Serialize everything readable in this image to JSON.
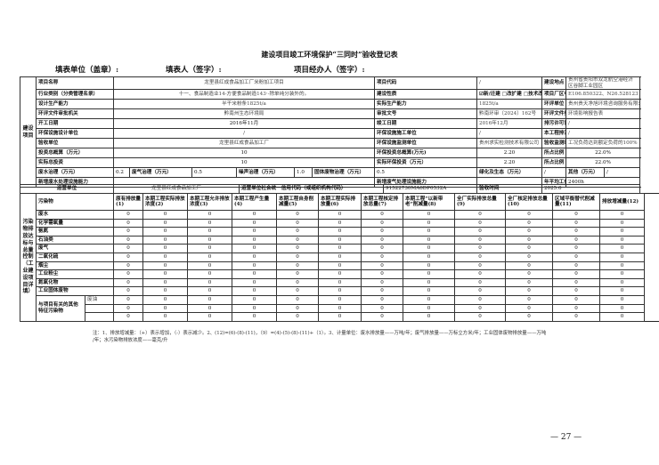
{
  "title": "建设项目竣工环境保护“三同时”验收登记表",
  "fill": {
    "unit": "填表单位（盖章）:",
    "person": "填表人（签字）:",
    "manager": "项目经办人（签字）:"
  },
  "project": {
    "section_label": "建设项目",
    "name_label": "项目名称",
    "name": "龙里县红成食品加工厂米粉加工项目",
    "code_label": "项目代码",
    "code": "/",
    "location_label": "建设地点",
    "location": "贵州省贵阳市双龙航空港经济区谷脚工业园区",
    "industry_label": "行业类别（分类管理名录）",
    "industry": "十一、食品制造业14-方便食品制造143·-除单纯分装外的。",
    "nature_label": "建设性质",
    "nature": "☑新/迁建 □改扩建 □技术改造",
    "coords_label": "项目厂区中心经度/纬度",
    "coords": "E106.850322、N26.528123",
    "design_capacity_label": "设计生产能力",
    "design_capacity": "半干米粉条1825t/a",
    "actual_capacity_label": "实际生产能力",
    "actual_capacity": "1825t/a",
    "eia_unit_label": "环评单位",
    "eia_unit": "贵州贵天净旭环境咨询服务有限公司",
    "approval_org_label": "环评文件审批机关",
    "approval_org": "黔南州生态环境局",
    "approval_no_label": "审批文号",
    "approval_no": "黔南环审〔2024〕162号",
    "eia_type_label": "环评文件类型",
    "eia_type": "环境影响报告表",
    "start_label": "开工日期",
    "start": "2016年11月",
    "finish_label": "竣工日期",
    "finish": "2016年12月",
    "permit_time_label": "排污许可证申领时间",
    "permit_time": "/",
    "design_unit_label": "环保设施设计单位",
    "design_unit": "/",
    "construct_unit_label": "环保设施施工单位",
    "construct_unit": "/",
    "permit_no_label": "本工程排污许可证编号",
    "permit_no": "/",
    "acceptance_unit_label": "验收单位",
    "acceptance_unit": "龙里县红成食品加工厂",
    "monitor_unit_label": "环保设施监测单位",
    "monitor_unit": "贵州求实检测技术有限公司",
    "condition_label": "验收监测时工况",
    "condition": "工况负荷达到额定负荷的100%",
    "budget_label": "投资总概算（万元）",
    "budget": "10",
    "env_budget_label": "环保投资总概算(万元)",
    "env_budget": "2.20",
    "ratio1_label": "所占比例（%）",
    "ratio1": "22.0%",
    "actual_invest_label": "实际总投资",
    "actual_invest": "10",
    "actual_env_label": "实际环保投资（万元）",
    "actual_env": "2.20",
    "ratio2_label": "所占比例（%）",
    "ratio2": "22.0%",
    "water_label": "废水治理（万元）",
    "water": "0.2",
    "gas_label": "废气治理（万元）",
    "gas": "0.5",
    "noise_label": "噪声治理（万元）",
    "noise": "1.0",
    "solid_label": "固体废物治理（万元）",
    "solid": "0.5",
    "green_label": "绿化及生态（万元）",
    "green": "/",
    "other_label": "其他（万元）",
    "other": "/",
    "new_water_label": "新增废水处理设施能力",
    "new_water": "",
    "new_gas_label": "新增废气处理设施能力",
    "new_gas": "",
    "hours_label": "年平均工作时",
    "hours": "2400h"
  },
  "operator": {
    "label": "运营单位",
    "value": "龙里县红成食品加工厂",
    "credit_label": "运营单位社会统一信用代码（或组织机构代码）",
    "credit": "91522730MA6DP0532A",
    "time_label": "验收时间",
    "time": "2025.6"
  },
  "pollutants": {
    "section_label": "污染物排放达标与总量控制（工业建设项目详填）",
    "header_label": "污染物",
    "columns": [
      "原有排放量(1)",
      "本期工程实际排放浓度(2)",
      "本期工程允许排放浓度(3)",
      "本期工程产生量(4)",
      "本期工程自身削减量(5)",
      "本期工程实际排放量(6)",
      "本期工程核定排放总量(7)",
      "本期工程“以新带老”削减量(8)",
      "全厂实际排放总量(9)",
      "全厂核定排放总量(10)",
      "区域平衡替代削减量(11)",
      "排放增减量(12)"
    ],
    "rows": [
      {
        "name": "废水",
        "values": [
          "0",
          "0",
          "0",
          "0",
          "0",
          "0",
          "0",
          "0",
          "0",
          "0",
          "0",
          "0"
        ]
      },
      {
        "name": "化学需氧量",
        "values": [
          "0",
          "0",
          "0",
          "0",
          "0",
          "0",
          "0",
          "0",
          "0",
          "0",
          "0",
          "0"
        ]
      },
      {
        "name": "氨氮",
        "values": [
          "0",
          "0",
          "0",
          "0",
          "0",
          "0",
          "0",
          "0",
          "0",
          "0",
          "0",
          "0"
        ]
      },
      {
        "name": "石油类",
        "values": [
          "0",
          "0",
          "0",
          "0",
          "0",
          "0",
          "0",
          "0",
          "0",
          "0",
          "0",
          "0"
        ]
      },
      {
        "name": "废气",
        "values": [
          "0",
          "0",
          "0",
          "0",
          "0",
          "0",
          "0",
          "0",
          "0",
          "0",
          "0",
          "0"
        ]
      },
      {
        "name": "二氧化硫",
        "values": [
          "0",
          "0",
          "0",
          "0",
          "0",
          "0",
          "0",
          "0",
          "0",
          "0",
          "0",
          "0"
        ]
      },
      {
        "name": "烟尘",
        "values": [
          "0",
          "0",
          "0",
          "0",
          "0",
          "0",
          "0",
          "0",
          "0",
          "0",
          "0",
          "0"
        ]
      },
      {
        "name": "工业粉尘",
        "values": [
          "0",
          "0",
          "0",
          "0",
          "0",
          "0",
          "0",
          "0",
          "0",
          "0",
          "0",
          "0"
        ]
      },
      {
        "name": "氮氧化物",
        "values": [
          "0",
          "0",
          "0",
          "0",
          "0",
          "0",
          "0",
          "0",
          "0",
          "0",
          "0",
          "0"
        ]
      },
      {
        "name": "工业固体废物",
        "values": [
          "0",
          "0",
          "0",
          "0",
          "0",
          "0",
          "0",
          "0",
          "0",
          "0",
          "0",
          "0"
        ]
      }
    ],
    "other_label": "与项目有关的其他特征污染物",
    "other_rows": [
      {
        "name": "废油",
        "values": [
          "0",
          "0",
          "0",
          "0",
          "0",
          "0",
          "0",
          "0",
          "0",
          "0",
          "0",
          "0"
        ]
      },
      {
        "name": "",
        "values": [
          "0",
          "0",
          "0",
          "0",
          "0",
          "0",
          "0",
          "0",
          "0",
          "0",
          "0",
          "0"
        ]
      },
      {
        "name": "",
        "values": [
          "0",
          "0",
          "0",
          "0",
          "0",
          "0",
          "0",
          "0",
          "0",
          "0",
          "0",
          "0"
        ]
      }
    ]
  },
  "note_line1": "注：1、排放增减量：（+）表示增加，（-）表示减少。2、(12)=(6)-(8)-(11)，（9）=(4)-(5)-(8)-(11)+（1）。3、计量单位：废水排放量——万吨/年；废气排放量——万标立方米/年；工业固体废物排放量——万吨",
  "note_line2": "/年；水污染物排放浓度——毫克/升",
  "page_number": "— 27 —"
}
